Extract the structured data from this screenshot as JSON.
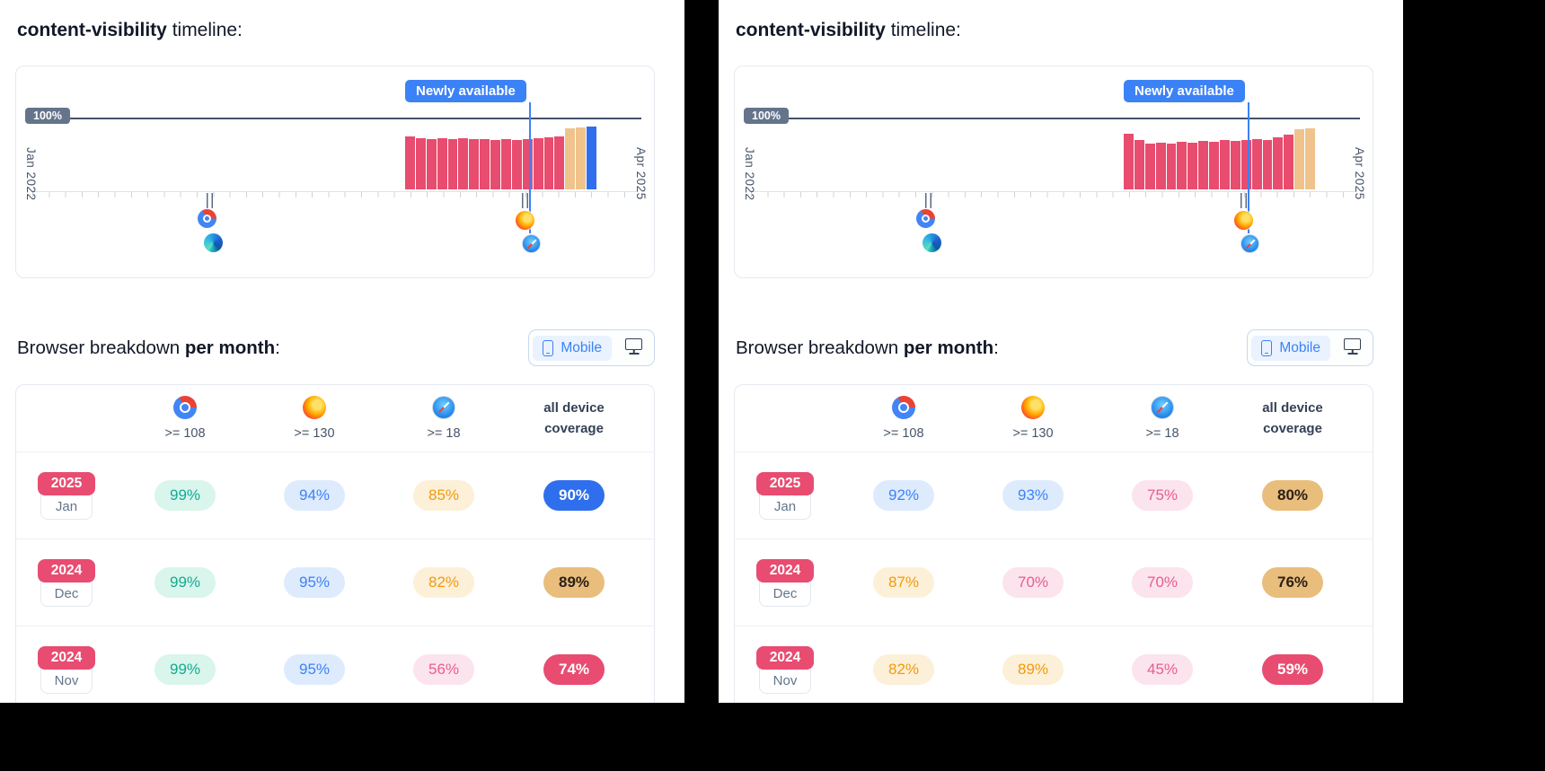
{
  "colors": {
    "accent_blue": "#3b82f6",
    "bar_pink": "#e84c6f",
    "bar_tan": "#efc38b",
    "bar_blue": "#2f6fed",
    "marker_badge_slate": "#64748b",
    "year_badge_pink": "#e84c71"
  },
  "panels": [
    {
      "title": {
        "code": "content-visibility",
        "rest": " timeline:"
      },
      "timeline": {
        "badge": "Newly available",
        "y_marker": "100%",
        "x_start": "Jan 2022",
        "x_end": "Apr 2025",
        "chart_data": {
          "type": "bar",
          "title": "content-visibility timeline",
          "x": [
            "2023-11",
            "2023-12",
            "2024-01",
            "2024-02",
            "2024-03",
            "2024-04",
            "2024-05",
            "2024-06",
            "2024-07",
            "2024-08",
            "2024-09",
            "2024-10",
            "2024-11",
            "2024-12",
            "2025-01",
            "2025-02",
            "2025-03",
            "2025-04"
          ],
          "values": [
            76,
            73,
            72,
            73,
            72,
            73,
            72,
            72,
            71,
            72,
            71,
            72,
            73,
            74,
            76,
            87,
            88,
            90
          ],
          "bar_colors": [
            "pink",
            "pink",
            "pink",
            "pink",
            "pink",
            "pink",
            "pink",
            "pink",
            "pink",
            "pink",
            "pink",
            "pink",
            "pink",
            "pink",
            "pink",
            "tan",
            "tan",
            "blue"
          ],
          "ylim": [
            0,
            100
          ],
          "reference_line": 100,
          "reference_line_label": "100%",
          "x_range": [
            "Jan 2022",
            "Apr 2025"
          ],
          "annotation": "Newly available",
          "browser_support_markers": [
            [
              "chrome",
              "edge"
            ],
            [
              "firefox",
              "safari"
            ]
          ],
          "legend_position": "none",
          "grid": false
        }
      },
      "breakdown": {
        "heading_plain": "Browser breakdown ",
        "heading_bold": "per month",
        "heading_suffix": ":",
        "toggle": {
          "mobile": "Mobile",
          "selected": "Mobile"
        },
        "table": {
          "columns": [
            {
              "browser": "chrome",
              "version": ">= 108"
            },
            {
              "browser": "firefox",
              "version": ">= 130"
            },
            {
              "browser": "safari",
              "version": ">= 18"
            }
          ],
          "coverage_header_line1": "all device",
          "coverage_header_line2": "coverage",
          "rows": [
            {
              "year": "2025",
              "month": "Jan",
              "cells": [
                {
                  "text": "99%",
                  "tone": "green"
                },
                {
                  "text": "94%",
                  "tone": "blue"
                },
                {
                  "text": "85%",
                  "tone": "orange"
                }
              ],
              "coverage": {
                "text": "90%",
                "tone": "solid-blue"
              }
            },
            {
              "year": "2024",
              "month": "Dec",
              "cells": [
                {
                  "text": "99%",
                  "tone": "green"
                },
                {
                  "text": "95%",
                  "tone": "blue"
                },
                {
                  "text": "82%",
                  "tone": "orange"
                }
              ],
              "coverage": {
                "text": "89%",
                "tone": "solid-tan"
              }
            },
            {
              "year": "2024",
              "month": "Nov",
              "cells": [
                {
                  "text": "99%",
                  "tone": "green"
                },
                {
                  "text": "95%",
                  "tone": "blue"
                },
                {
                  "text": "56%",
                  "tone": "pink"
                }
              ],
              "coverage": {
                "text": "74%",
                "tone": "solid-pink"
              }
            }
          ]
        }
      }
    },
    {
      "title": {
        "code": "content-visibility",
        "rest": " timeline:"
      },
      "timeline": {
        "badge": "Newly available",
        "y_marker": "100%",
        "x_start": "Jan 2022",
        "x_end": "Apr 2025",
        "chart_data": {
          "type": "bar",
          "title": "content-visibility timeline",
          "x": [
            "2023-11",
            "2023-12",
            "2024-01",
            "2024-02",
            "2024-03",
            "2024-04",
            "2024-05",
            "2024-06",
            "2024-07",
            "2024-08",
            "2024-09",
            "2024-10",
            "2024-11",
            "2024-12",
            "2025-01",
            "2025-02",
            "2025-03",
            "2025-04"
          ],
          "values": [
            79,
            70,
            66,
            67,
            66,
            68,
            67,
            69,
            68,
            70,
            69,
            71,
            72,
            71,
            74,
            78,
            86,
            87
          ],
          "bar_colors": [
            "pink",
            "pink",
            "pink",
            "pink",
            "pink",
            "pink",
            "pink",
            "pink",
            "pink",
            "pink",
            "pink",
            "pink",
            "pink",
            "pink",
            "pink",
            "pink",
            "tan",
            "tan"
          ],
          "ylim": [
            0,
            100
          ],
          "reference_line": 100,
          "reference_line_label": "100%",
          "x_range": [
            "Jan 2022",
            "Apr 2025"
          ],
          "annotation": "Newly available",
          "browser_support_markers": [
            [
              "chrome",
              "edge"
            ],
            [
              "firefox",
              "safari"
            ]
          ],
          "legend_position": "none",
          "grid": false
        }
      },
      "breakdown": {
        "heading_plain": "Browser breakdown ",
        "heading_bold": "per month",
        "heading_suffix": ":",
        "toggle": {
          "mobile": "Mobile",
          "selected": "Mobile"
        },
        "table": {
          "columns": [
            {
              "browser": "chrome",
              "version": ">= 108"
            },
            {
              "browser": "firefox",
              "version": ">= 130"
            },
            {
              "browser": "safari",
              "version": ">= 18"
            }
          ],
          "coverage_header_line1": "all device",
          "coverage_header_line2": "coverage",
          "rows": [
            {
              "year": "2025",
              "month": "Jan",
              "cells": [
                {
                  "text": "92%",
                  "tone": "blue"
                },
                {
                  "text": "93%",
                  "tone": "blue"
                },
                {
                  "text": "75%",
                  "tone": "pink"
                }
              ],
              "coverage": {
                "text": "80%",
                "tone": "solid-tan"
              }
            },
            {
              "year": "2024",
              "month": "Dec",
              "cells": [
                {
                  "text": "87%",
                  "tone": "orange"
                },
                {
                  "text": "70%",
                  "tone": "pink"
                },
                {
                  "text": "70%",
                  "tone": "pink"
                }
              ],
              "coverage": {
                "text": "76%",
                "tone": "solid-tan"
              }
            },
            {
              "year": "2024",
              "month": "Nov",
              "cells": [
                {
                  "text": "82%",
                  "tone": "orange"
                },
                {
                  "text": "89%",
                  "tone": "orange"
                },
                {
                  "text": "45%",
                  "tone": "pink"
                }
              ],
              "coverage": {
                "text": "59%",
                "tone": "solid-pink"
              }
            }
          ]
        }
      }
    }
  ]
}
